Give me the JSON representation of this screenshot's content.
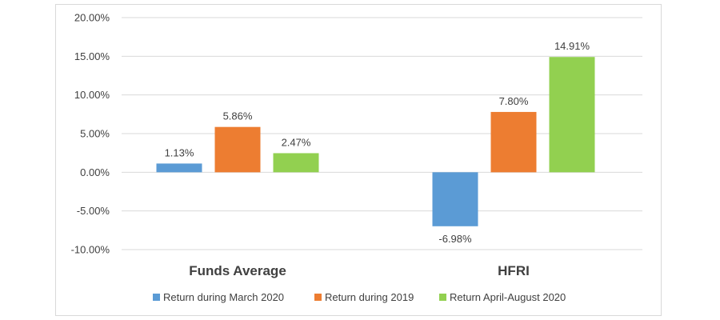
{
  "chart_data": {
    "type": "bar",
    "title": "",
    "xlabel": "",
    "ylabel": "",
    "categories": [
      "Funds Average",
      "HFRI"
    ],
    "series": [
      {
        "name": "Return during March 2020",
        "values": [
          1.13,
          -6.98
        ],
        "labels": [
          "1.13%",
          "-6.98%"
        ],
        "color": "#5b9bd5"
      },
      {
        "name": "Return during 2019",
        "values": [
          5.86,
          7.8
        ],
        "labels": [
          "5.86%",
          "7.80%"
        ],
        "color": "#ed7d31"
      },
      {
        "name": "Return April-August 2020",
        "values": [
          2.47,
          14.91
        ],
        "labels": [
          "2.47%",
          "14.91%"
        ],
        "color": "#92d050"
      }
    ],
    "ylim": [
      -10,
      20
    ],
    "yticks": [
      20,
      15,
      10,
      5,
      0,
      -5,
      -10
    ],
    "ytick_labels": [
      "20.00%",
      "15.00%",
      "10.00%",
      "5.00%",
      "0.00%",
      "-5.00%",
      "-10.00%"
    ],
    "grid": true,
    "legend_position": "bottom"
  }
}
